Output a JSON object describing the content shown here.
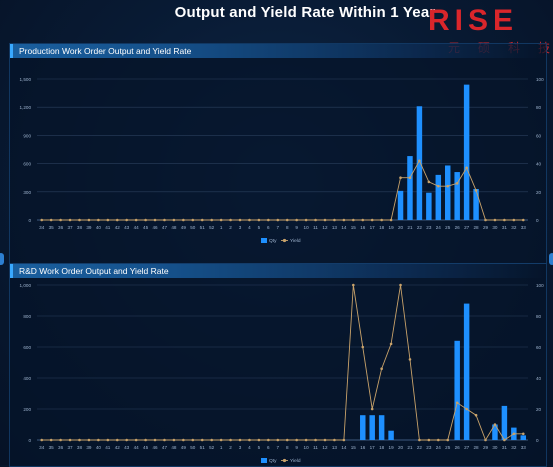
{
  "page": {
    "title": "Output and Yield Rate Within 1 Year"
  },
  "logo": {
    "brand": "RISE",
    "cn": "元硕科技"
  },
  "colors": {
    "bar": "#1e90ff",
    "line": "#c8a26a",
    "axis_text": "#9fb4cf",
    "grid": "#2a3f5c"
  },
  "icons": {
    "edge_left": "chevron-left-icon",
    "edge_right": "chevron-right-icon"
  },
  "chart_data": [
    {
      "type": "bar",
      "title": "Production Work Order Output and Yield Rate",
      "categories": [
        "34",
        "35",
        "36",
        "37",
        "38",
        "39",
        "40",
        "41",
        "42",
        "43",
        "44",
        "45",
        "46",
        "47",
        "48",
        "49",
        "50",
        "51",
        "52",
        "1",
        "2",
        "3",
        "4",
        "5",
        "6",
        "7",
        "8",
        "9",
        "10",
        "11",
        "12",
        "13",
        "14",
        "15",
        "16",
        "17",
        "18",
        "19",
        "20",
        "21",
        "22",
        "23",
        "24",
        "25",
        "26",
        "27",
        "28",
        "29",
        "30",
        "31",
        "32",
        "33"
      ],
      "ylim": [
        0,
        1500
      ],
      "yticks": [
        "0",
        "300",
        "600",
        "900",
        "1,200",
        "1,500"
      ],
      "y2lim": [
        0,
        100
      ],
      "y2ticks": [
        "0",
        "20",
        "40",
        "60",
        "80",
        "100"
      ],
      "legend": {
        "position": "bottom-center",
        "items": [
          "Qty",
          "Yield"
        ]
      },
      "series": [
        {
          "name": "Qty",
          "type": "bar",
          "values": [
            0,
            0,
            0,
            0,
            0,
            0,
            0,
            0,
            0,
            0,
            0,
            0,
            0,
            0,
            0,
            0,
            0,
            0,
            0,
            0,
            0,
            0,
            0,
            0,
            0,
            0,
            0,
            0,
            0,
            0,
            0,
            0,
            0,
            0,
            0,
            0,
            0,
            0,
            310,
            680,
            1210,
            290,
            480,
            580,
            510,
            1440,
            330,
            0,
            0,
            0,
            0,
            0
          ]
        },
        {
          "name": "Yield",
          "type": "line",
          "axis": "y2",
          "values": [
            0,
            0,
            0,
            0,
            0,
            0,
            0,
            0,
            0,
            0,
            0,
            0,
            0,
            0,
            0,
            0,
            0,
            0,
            0,
            0,
            0,
            0,
            0,
            0,
            0,
            0,
            0,
            0,
            0,
            0,
            0,
            0,
            0,
            0,
            0,
            0,
            0,
            0,
            30,
            30,
            42,
            27,
            24,
            24,
            26,
            37,
            21,
            0,
            0,
            0,
            0,
            0
          ]
        }
      ]
    },
    {
      "type": "bar",
      "title": "R&D Work Order Output and Yield Rate",
      "categories": [
        "34",
        "35",
        "36",
        "37",
        "38",
        "39",
        "40",
        "41",
        "42",
        "43",
        "44",
        "45",
        "46",
        "47",
        "48",
        "49",
        "50",
        "51",
        "52",
        "1",
        "2",
        "3",
        "4",
        "5",
        "6",
        "7",
        "8",
        "9",
        "10",
        "11",
        "12",
        "13",
        "14",
        "15",
        "16",
        "17",
        "18",
        "19",
        "20",
        "21",
        "22",
        "23",
        "24",
        "25",
        "26",
        "27",
        "28",
        "29",
        "30",
        "31",
        "32",
        "33"
      ],
      "ylim": [
        0,
        1000
      ],
      "yticks": [
        "0",
        "200",
        "400",
        "600",
        "800",
        "1,000"
      ],
      "y2lim": [
        0,
        100
      ],
      "y2ticks": [
        "0",
        "20",
        "40",
        "60",
        "80",
        "100"
      ],
      "legend": {
        "position": "bottom-center",
        "items": [
          "Qty",
          "Yield"
        ]
      },
      "series": [
        {
          "name": "Qty",
          "type": "bar",
          "values": [
            0,
            0,
            0,
            0,
            0,
            0,
            0,
            0,
            0,
            0,
            0,
            0,
            0,
            0,
            0,
            0,
            0,
            0,
            0,
            0,
            0,
            0,
            0,
            0,
            0,
            0,
            0,
            0,
            0,
            0,
            0,
            0,
            0,
            0,
            160,
            160,
            160,
            60,
            0,
            0,
            0,
            0,
            0,
            0,
            640,
            880,
            0,
            0,
            100,
            220,
            80,
            30
          ]
        },
        {
          "name": "Yield",
          "type": "line",
          "axis": "y2",
          "values": [
            0,
            0,
            0,
            0,
            0,
            0,
            0,
            0,
            0,
            0,
            0,
            0,
            0,
            0,
            0,
            0,
            0,
            0,
            0,
            0,
            0,
            0,
            0,
            0,
            0,
            0,
            0,
            0,
            0,
            0,
            0,
            0,
            0,
            100,
            60,
            20,
            46,
            62,
            100,
            52,
            0,
            0,
            0,
            0,
            24,
            20,
            16,
            0,
            10,
            0,
            4,
            4
          ]
        }
      ]
    }
  ]
}
